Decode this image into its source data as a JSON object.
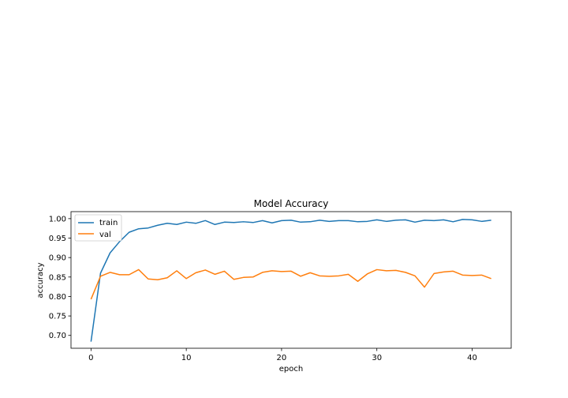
{
  "chart_data": {
    "type": "line",
    "title": "Model Accuracy",
    "xlabel": "epoch",
    "ylabel": "accuracy",
    "xlim": [
      -2.1,
      44.1
    ],
    "ylim": [
      0.667,
      1.018
    ],
    "xticks": [
      0,
      10,
      20,
      30,
      40
    ],
    "yticks": [
      0.7,
      0.75,
      0.8,
      0.85,
      0.9,
      0.95,
      1.0
    ],
    "ytick_labels": [
      "0.70",
      "0.75",
      "0.80",
      "0.85",
      "0.90",
      "0.95",
      "1.00"
    ],
    "grid": false,
    "legend": "upper-left",
    "series": [
      {
        "name": "train",
        "color": "#1f77b4",
        "x": [
          0,
          1,
          2,
          3,
          4,
          5,
          6,
          7,
          8,
          9,
          10,
          11,
          12,
          13,
          14,
          15,
          16,
          17,
          18,
          19,
          20,
          21,
          22,
          23,
          24,
          25,
          26,
          27,
          28,
          29,
          30,
          31,
          32,
          33,
          34,
          35,
          36,
          37,
          38,
          39,
          40,
          41,
          42
        ],
        "values": [
          0.684,
          0.86,
          0.912,
          0.941,
          0.965,
          0.974,
          0.976,
          0.983,
          0.988,
          0.985,
          0.991,
          0.988,
          0.995,
          0.985,
          0.991,
          0.99,
          0.992,
          0.99,
          0.995,
          0.989,
          0.995,
          0.996,
          0.991,
          0.992,
          0.996,
          0.993,
          0.995,
          0.995,
          0.992,
          0.993,
          0.997,
          0.993,
          0.996,
          0.997,
          0.991,
          0.996,
          0.995,
          0.997,
          0.992,
          0.998,
          0.997,
          0.993,
          0.996
        ]
      },
      {
        "name": "val",
        "color": "#ff7f0e",
        "x": [
          0,
          1,
          2,
          3,
          4,
          5,
          6,
          7,
          8,
          9,
          10,
          11,
          12,
          13,
          14,
          15,
          16,
          17,
          18,
          19,
          20,
          21,
          22,
          23,
          24,
          25,
          26,
          27,
          28,
          29,
          30,
          31,
          32,
          33,
          34,
          35,
          36,
          37,
          38,
          39,
          40,
          41,
          42
        ],
        "values": [
          0.793,
          0.852,
          0.862,
          0.856,
          0.856,
          0.869,
          0.845,
          0.843,
          0.848,
          0.866,
          0.846,
          0.861,
          0.868,
          0.857,
          0.865,
          0.844,
          0.849,
          0.85,
          0.862,
          0.866,
          0.864,
          0.865,
          0.852,
          0.861,
          0.853,
          0.852,
          0.853,
          0.857,
          0.839,
          0.858,
          0.869,
          0.866,
          0.867,
          0.862,
          0.853,
          0.824,
          0.859,
          0.863,
          0.865,
          0.855,
          0.854,
          0.855,
          0.846
        ]
      }
    ]
  }
}
